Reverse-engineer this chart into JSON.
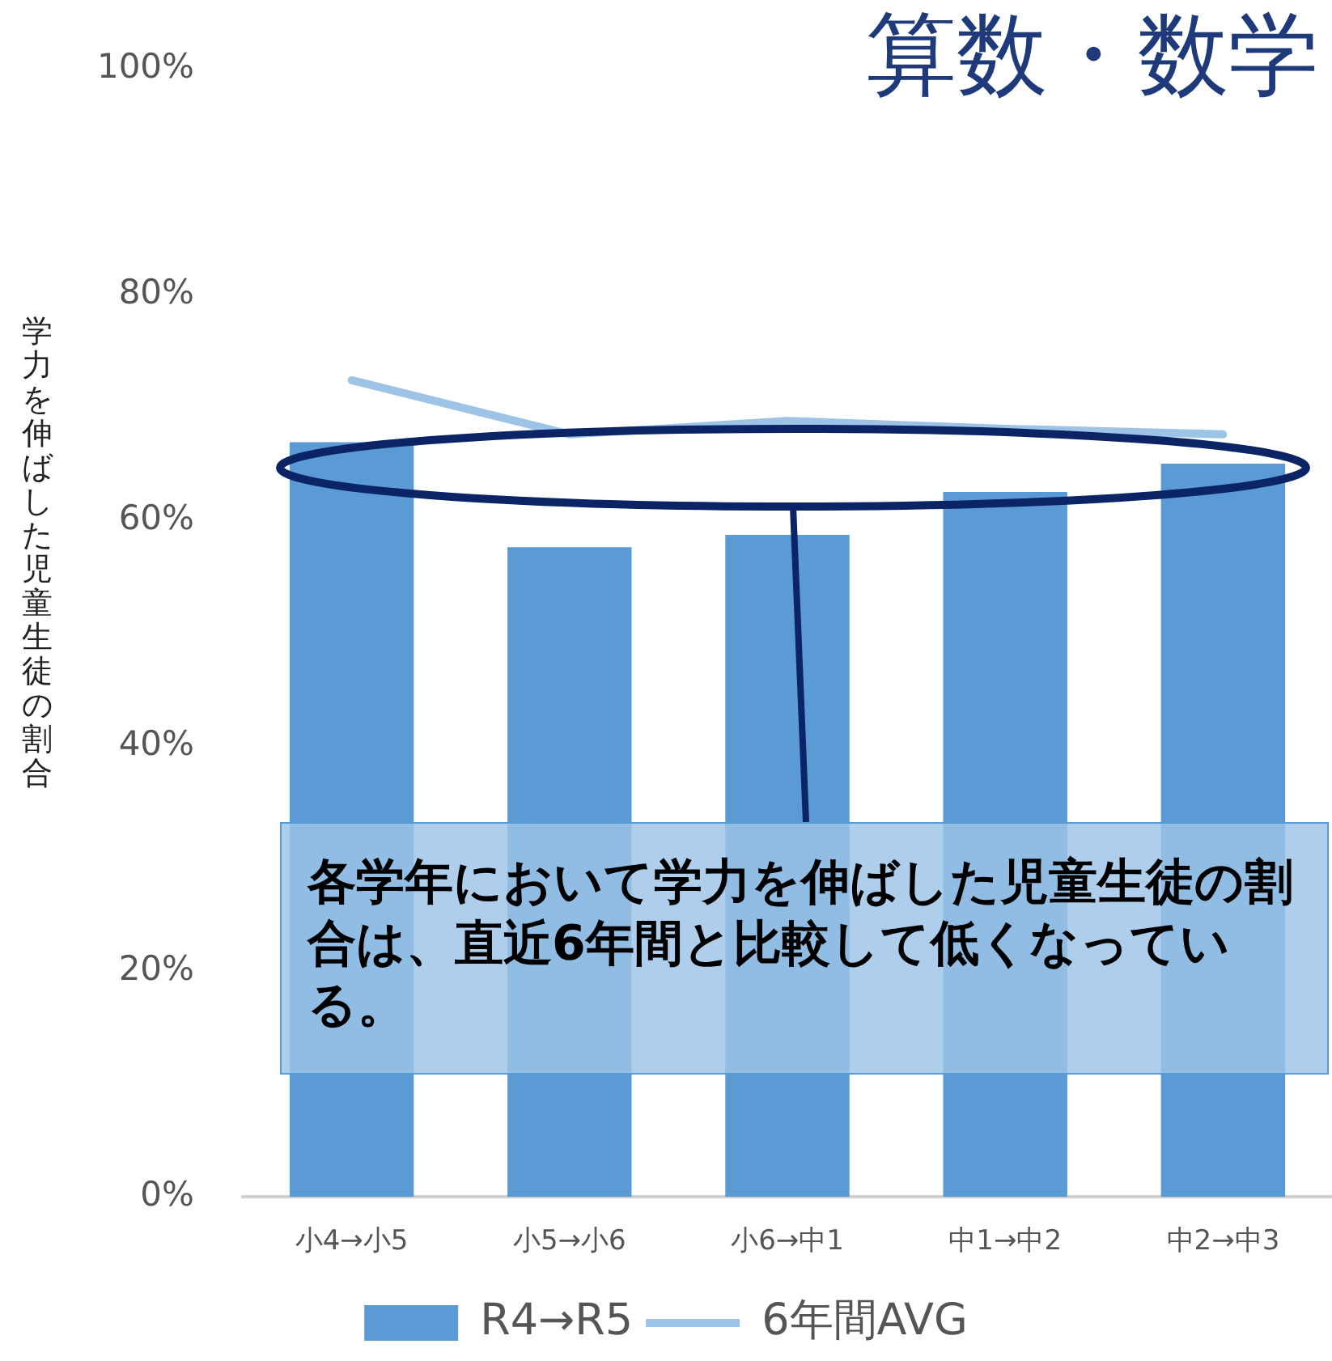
{
  "chart_data": {
    "type": "bar",
    "title": "算数・数学",
    "ylabel": "学力を伸ばした児童生徒の割合",
    "categories": [
      "小4→小5",
      "小5→小6",
      "小6→中1",
      "中1→中2",
      "中2→中3"
    ],
    "series": [
      {
        "name": "R4→R5",
        "color": "#5b9bd5",
        "values": [
          66.9,
          57.6,
          58.7,
          62.5,
          65.0
        ]
      },
      {
        "name": "6年間AVG",
        "type": "line",
        "color": "#9dc3e6",
        "values": [
          72.4,
          67.6,
          68.8,
          68.1,
          67.6
        ]
      }
    ],
    "ylim": [
      0,
      100
    ],
    "yticks": [
      {
        "value": 0,
        "label": "0%"
      },
      {
        "value": 20,
        "label": "20%"
      },
      {
        "value": 40,
        "label": "40%"
      },
      {
        "value": 60,
        "label": "60%"
      },
      {
        "value": 80,
        "label": "80%"
      },
      {
        "value": 100,
        "label": "100%"
      }
    ],
    "grid": false,
    "legend": "bottom",
    "marker": "none",
    "annotations": [
      "各学年において学力を伸ばした児童生徒の割合は、直近6年間と比較して低くなっている。"
    ]
  }
}
